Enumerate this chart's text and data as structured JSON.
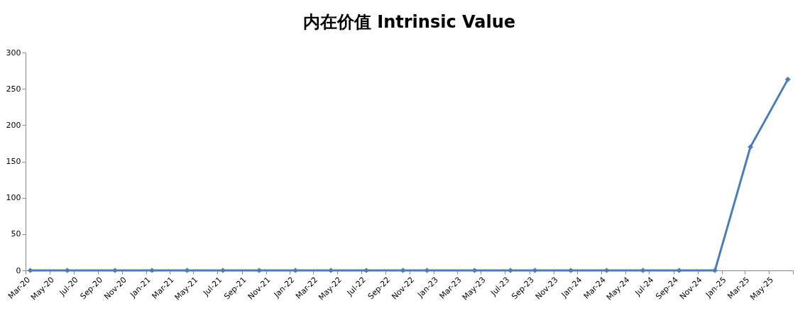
{
  "chart_data": {
    "type": "line",
    "title": "内在价值 Intrinsic Value",
    "x": [
      "2020-03-13",
      "2020-06-15",
      "2020-10-14",
      "2021-01-16",
      "2021-04-15",
      "2021-07-15",
      "2021-10-15",
      "2022-01-15",
      "2022-04-15",
      "2022-07-14",
      "2022-10-15",
      "2022-12-15",
      "2023-04-15",
      "2023-07-15",
      "2023-09-15",
      "2023-12-15",
      "2024-03-15",
      "2024-06-15",
      "2024-09-15",
      "2024-12-15",
      "2025-03-15",
      "2025-06-18"
    ],
    "series": [
      {
        "color": "#4a7ebb",
        "values": [
          0,
          0,
          0,
          0,
          0,
          0,
          0,
          0,
          0,
          0,
          0,
          0,
          0,
          0,
          0,
          0,
          0,
          0,
          0,
          0,
          170,
          263
        ]
      }
    ],
    "xlim": [
      "2020-03-01",
      "2025-07-01"
    ],
    "xticks": [
      {
        "value": "2020-03-01",
        "label": "Mar-20"
      },
      {
        "value": "2020-05-01",
        "label": "May-20"
      },
      {
        "value": "2020-07-01",
        "label": "Jul-20"
      },
      {
        "value": "2020-09-01",
        "label": "Sep-20"
      },
      {
        "value": "2020-11-01",
        "label": "Nov-20"
      },
      {
        "value": "2021-01-01",
        "label": "Jan-21"
      },
      {
        "value": "2021-03-01",
        "label": "Mar-21"
      },
      {
        "value": "2021-05-01",
        "label": "May-21"
      },
      {
        "value": "2021-07-01",
        "label": "Jul-21"
      },
      {
        "value": "2021-09-01",
        "label": "Sep-21"
      },
      {
        "value": "2021-11-01",
        "label": "Nov-21"
      },
      {
        "value": "2022-01-01",
        "label": "Jan-22"
      },
      {
        "value": "2022-03-01",
        "label": "Mar-22"
      },
      {
        "value": "2022-05-01",
        "label": "May-22"
      },
      {
        "value": "2022-07-01",
        "label": "Jul-22"
      },
      {
        "value": "2022-09-01",
        "label": "Sep-22"
      },
      {
        "value": "2022-11-01",
        "label": "Nov-22"
      },
      {
        "value": "2023-01-01",
        "label": "Jan-23"
      },
      {
        "value": "2023-03-01",
        "label": "Mar-23"
      },
      {
        "value": "2023-05-01",
        "label": "May-23"
      },
      {
        "value": "2023-07-01",
        "label": "Jul-23"
      },
      {
        "value": "2023-09-01",
        "label": "Sep-23"
      },
      {
        "value": "2023-11-01",
        "label": "Nov-23"
      },
      {
        "value": "2024-01-01",
        "label": "Jan-24"
      },
      {
        "value": "2024-03-01",
        "label": "Mar-24"
      },
      {
        "value": "2024-05-01",
        "label": "May-24"
      },
      {
        "value": "2024-07-01",
        "label": "Jul-24"
      },
      {
        "value": "2024-09-01",
        "label": "Sep-24"
      },
      {
        "value": "2024-11-01",
        "label": "Nov-24"
      },
      {
        "value": "2025-01-01",
        "label": "Jan-25"
      },
      {
        "value": "2025-03-01",
        "label": "Mar-25"
      },
      {
        "value": "2025-05-01",
        "label": "May-25"
      },
      {
        "value": "2025-07-01",
        "label": null
      }
    ],
    "ylim": [
      0,
      300
    ],
    "yticks": [
      0,
      50,
      100,
      150,
      200,
      250,
      300
    ],
    "grid": false,
    "marker": "diamond",
    "line_style": "solid"
  }
}
